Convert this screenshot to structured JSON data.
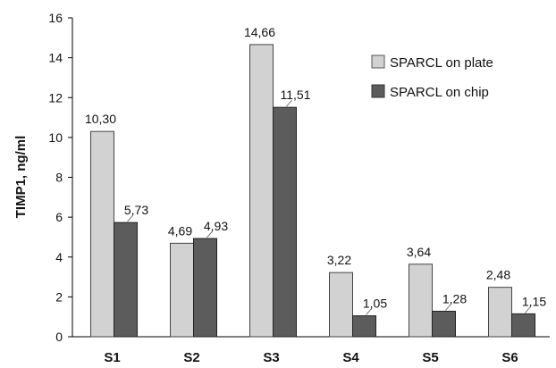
{
  "chart_data": {
    "type": "bar",
    "title": "",
    "xlabel": "",
    "ylabel": "TIMP1, ng/ml",
    "ylim": [
      0,
      16
    ],
    "yticks": [
      0,
      2,
      4,
      6,
      8,
      10,
      12,
      14,
      16
    ],
    "grid": false,
    "legend_position": "top-right",
    "categories": [
      "S1",
      "S2",
      "S3",
      "S4",
      "S5",
      "S6"
    ],
    "series": [
      {
        "name": "SPARCL on plate",
        "color": "#d2d2d2",
        "values": [
          10.3,
          4.69,
          14.66,
          3.22,
          3.64,
          2.48
        ],
        "labels": [
          "10,30",
          "4,69",
          "14,66",
          "3,22",
          "3,64",
          "2,48"
        ]
      },
      {
        "name": "SPARCL on chip",
        "color": "#5c5c5c",
        "values": [
          5.73,
          4.93,
          11.51,
          1.05,
          1.28,
          1.15
        ],
        "labels": [
          "5,73",
          "4,93",
          "11,51",
          "1,05",
          "1,28",
          "1,15"
        ]
      }
    ]
  }
}
